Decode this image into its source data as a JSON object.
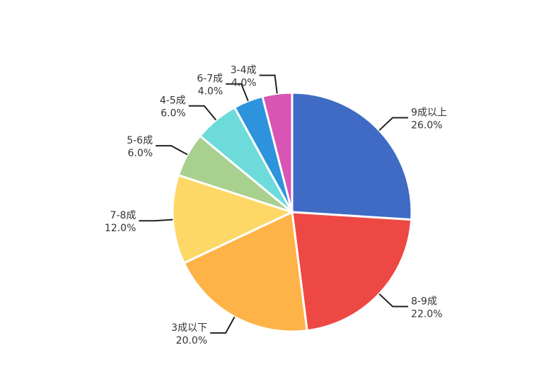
{
  "chart_data": {
    "type": "pie",
    "categories": [
      "9成以上",
      "8-9成",
      "3成以下",
      "7-8成",
      "5-6成",
      "4-5成",
      "6-7成",
      "3-4成"
    ],
    "values": [
      26.0,
      22.0,
      20.0,
      12.0,
      6.0,
      6.0,
      4.0,
      4.0
    ],
    "value_labels": [
      "26.0%",
      "22.0%",
      "20.0%",
      "12.0%",
      "6.0%",
      "6.0%",
      "4.0%",
      "4.0%"
    ],
    "colors": [
      "#3f6bc4",
      "#ee4844",
      "#feb349",
      "#fdd866",
      "#a8d08e",
      "#6edbdb",
      "#2c93dc",
      "#d855b3"
    ],
    "legend": "none"
  }
}
